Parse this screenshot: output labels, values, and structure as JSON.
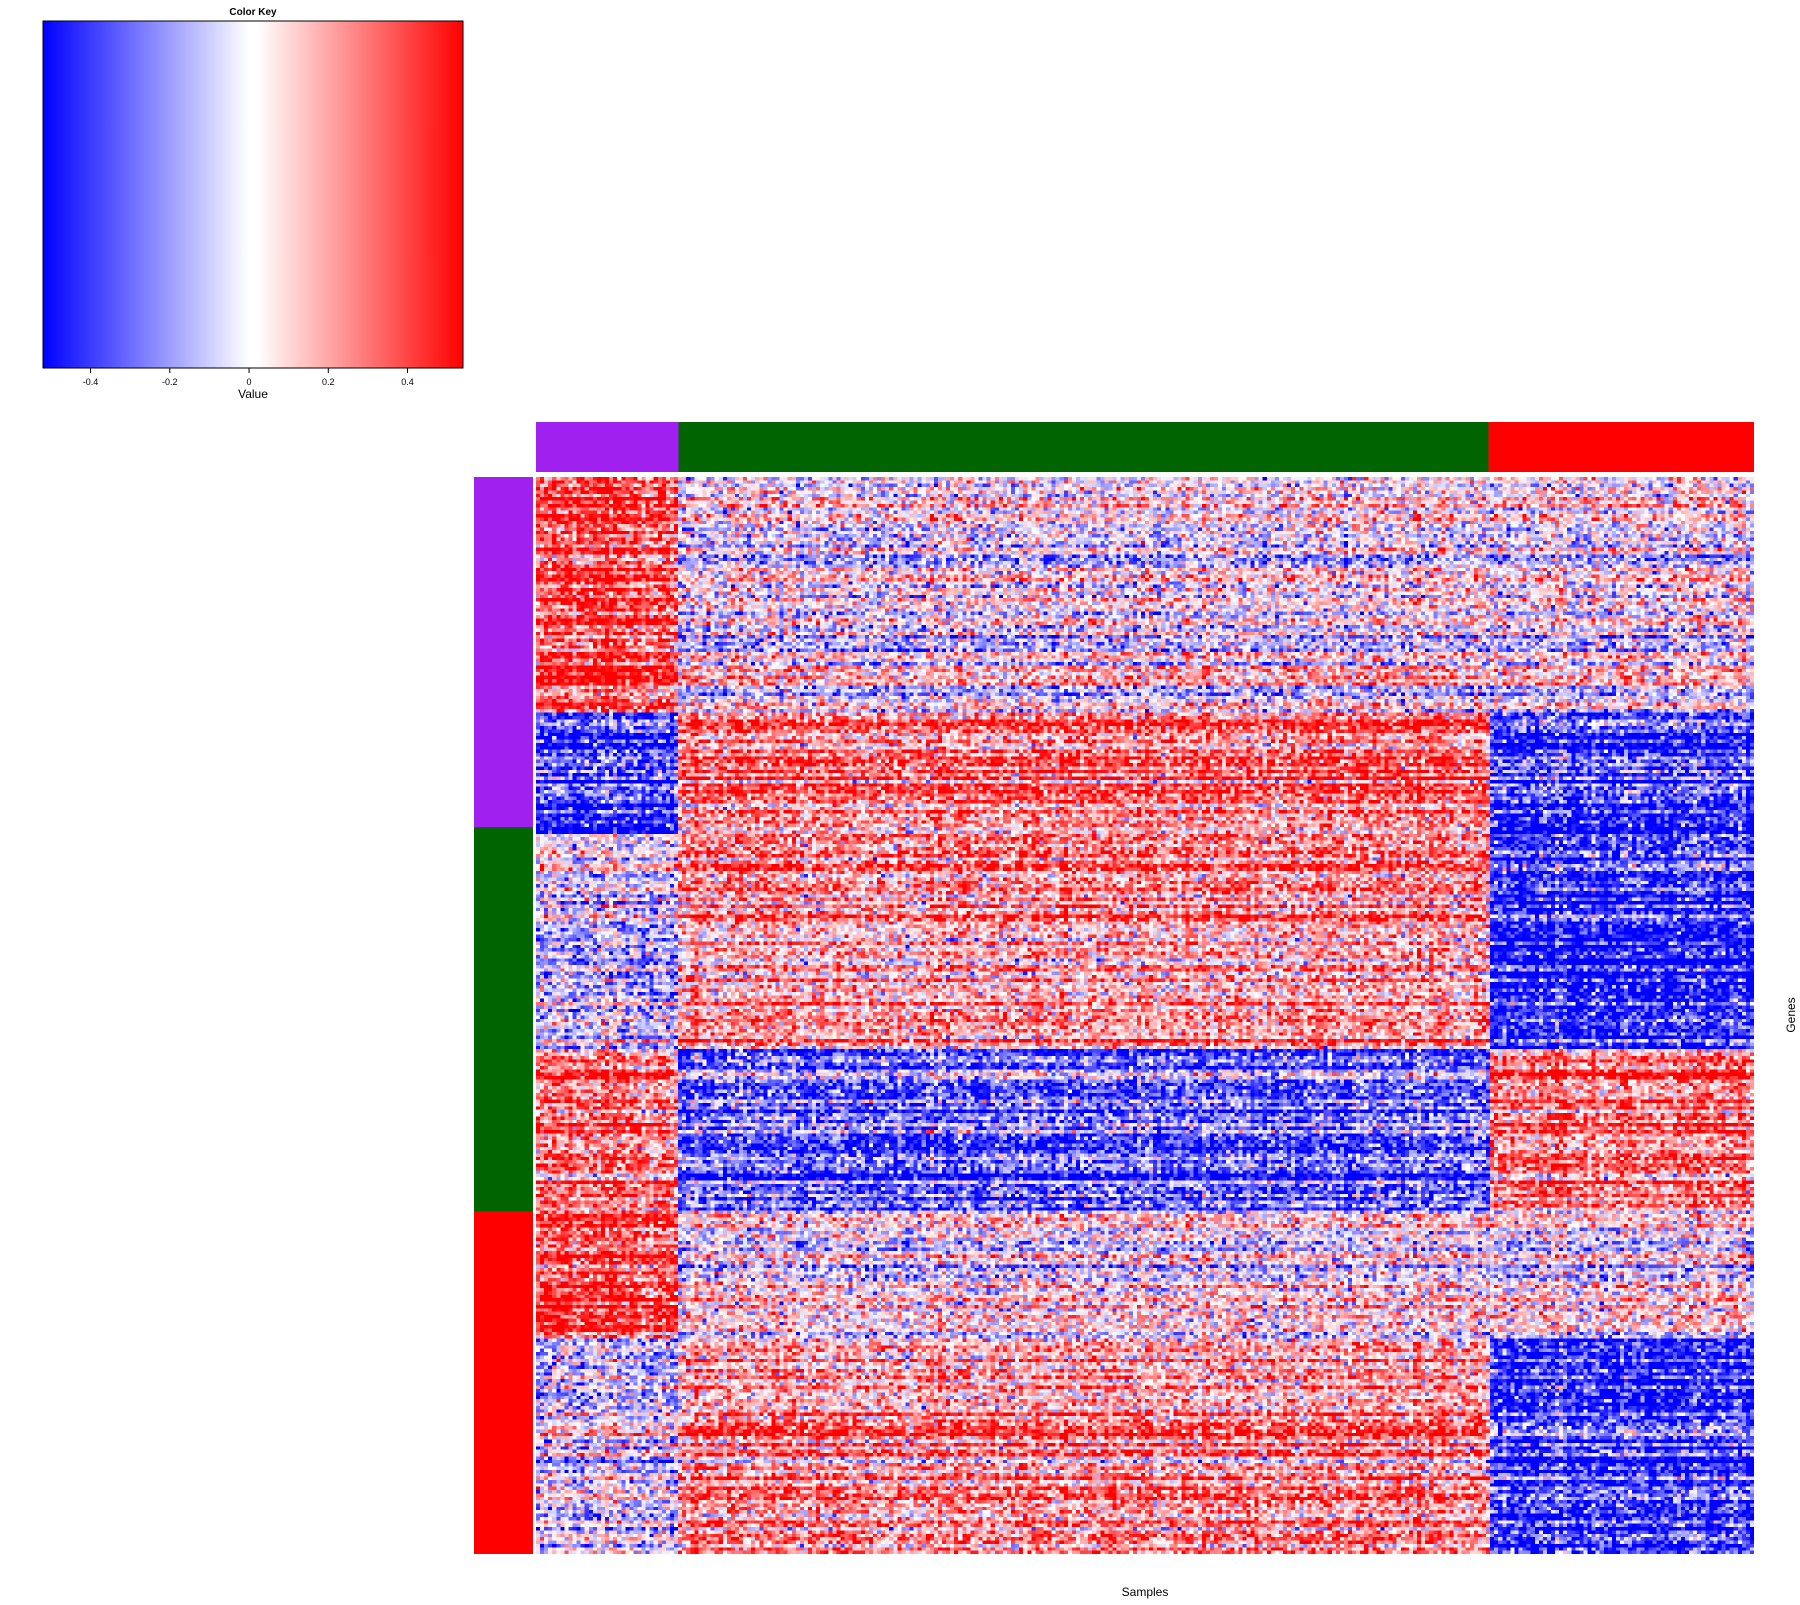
{
  "chart_data": {
    "type": "heatmap",
    "xlabel": "Samples",
    "ylabel": "Genes",
    "color_key": {
      "title": "Color Key",
      "label": "Value",
      "range": [
        -0.52,
        0.54
      ],
      "ticks": [
        -0.4,
        -0.2,
        0,
        0.2,
        0.4
      ],
      "tick_labels": [
        "-0.4",
        "-0.2",
        "0",
        "0.2",
        "0.4"
      ],
      "colors": [
        "#0000ff",
        "#ffffff",
        "#ff0000"
      ]
    },
    "sample_groups": [
      {
        "color": "#a020f0",
        "fraction": 0.117
      },
      {
        "color": "#006400",
        "fraction": 0.665
      },
      {
        "color": "#ff0000",
        "fraction": 0.218
      }
    ],
    "gene_groups": [
      {
        "color": "#a020f0",
        "fraction": 0.325
      },
      {
        "color": "#006400",
        "fraction": 0.357
      },
      {
        "color": "#ff0000",
        "fraction": 0.318
      }
    ],
    "cluster_pattern": [
      [
        0.45,
        0.0,
        0.0
      ],
      [
        -0.45,
        0.35,
        -0.45
      ],
      [
        0.35,
        -0.35,
        0.35
      ],
      [
        -0.1,
        0.25,
        -0.5
      ]
    ],
    "gene_blocks": [
      0.22,
      0.11,
      0.2,
      0.15,
      0.12,
      0.2
    ],
    "block_pattern": [
      0,
      1,
      3,
      2,
      0,
      3
    ]
  }
}
